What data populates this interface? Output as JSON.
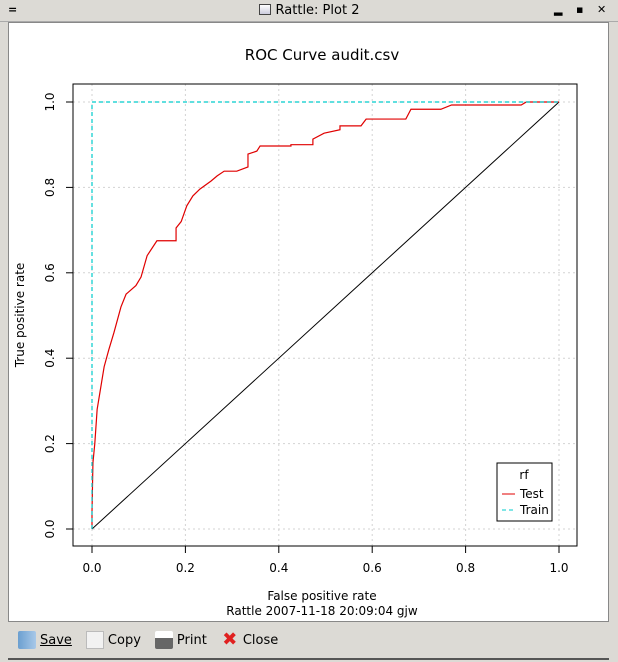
{
  "window": {
    "title": "Rattle: Plot 2",
    "menu_icon": "menu-icon",
    "min": "minimize-icon",
    "max": "maximize-icon",
    "close": "close-icon"
  },
  "toolbar": {
    "save": "Save",
    "copy": "Copy",
    "print": "Print",
    "close": "Close"
  },
  "footer": "Rattle 2007-11-18 20:09:04 gjw",
  "chart_data": {
    "type": "line",
    "title": "ROC Curve  audit.csv",
    "xlabel": "False positive rate",
    "ylabel": "True positive rate",
    "xlim": [
      0,
      1
    ],
    "ylim": [
      0,
      1
    ],
    "xticks": [
      "0.0",
      "0.2",
      "0.4",
      "0.6",
      "0.8",
      "1.0"
    ],
    "yticks": [
      "0.0",
      "0.2",
      "0.4",
      "0.6",
      "0.8",
      "1.0"
    ],
    "grid": true,
    "legend": {
      "title": "rf",
      "position": "bottom-right"
    },
    "series": [
      {
        "name": "Test",
        "color": "#e00000",
        "dash": false,
        "points": [
          [
            0,
            0
          ],
          [
            0,
            0.04
          ],
          [
            0.002,
            0.155
          ],
          [
            0.006,
            0.2
          ],
          [
            0.011,
            0.28
          ],
          [
            0.017,
            0.32
          ],
          [
            0.026,
            0.38
          ],
          [
            0.036,
            0.42
          ],
          [
            0.047,
            0.46
          ],
          [
            0.062,
            0.52
          ],
          [
            0.073,
            0.55
          ],
          [
            0.094,
            0.57
          ],
          [
            0.105,
            0.59
          ],
          [
            0.118,
            0.64
          ],
          [
            0.139,
            0.675
          ],
          [
            0.18,
            0.675
          ],
          [
            0.18,
            0.705
          ],
          [
            0.191,
            0.72
          ],
          [
            0.203,
            0.757
          ],
          [
            0.216,
            0.78
          ],
          [
            0.231,
            0.796
          ],
          [
            0.255,
            0.815
          ],
          [
            0.268,
            0.827
          ],
          [
            0.283,
            0.838
          ],
          [
            0.31,
            0.838
          ],
          [
            0.334,
            0.848
          ],
          [
            0.334,
            0.878
          ],
          [
            0.353,
            0.885
          ],
          [
            0.36,
            0.897
          ],
          [
            0.426,
            0.897
          ],
          [
            0.426,
            0.9
          ],
          [
            0.473,
            0.9
          ],
          [
            0.473,
            0.913
          ],
          [
            0.497,
            0.927
          ],
          [
            0.531,
            0.935
          ],
          [
            0.531,
            0.944
          ],
          [
            0.576,
            0.944
          ],
          [
            0.587,
            0.96
          ],
          [
            0.672,
            0.96
          ],
          [
            0.683,
            0.983
          ],
          [
            0.747,
            0.983
          ],
          [
            0.77,
            0.993
          ],
          [
            0.919,
            0.993
          ],
          [
            0.93,
            1
          ],
          [
            1,
            1
          ]
        ]
      },
      {
        "name": "Train",
        "color": "#00cccc",
        "dash": true,
        "points": [
          [
            0,
            0
          ],
          [
            0,
            1
          ],
          [
            1,
            1
          ]
        ]
      }
    ],
    "reference_line": {
      "color": "#000000",
      "points": [
        [
          0,
          0
        ],
        [
          1,
          1
        ]
      ]
    }
  }
}
